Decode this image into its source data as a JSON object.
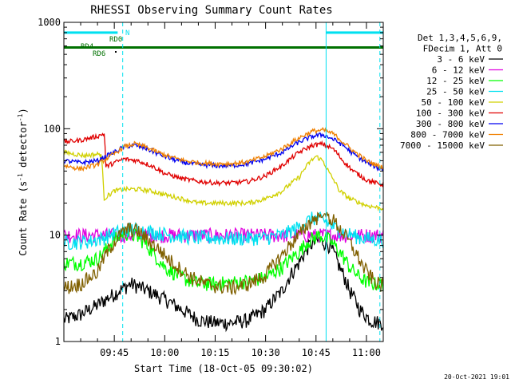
{
  "chart_data": {
    "type": "line",
    "title": "RHESSI Observing Summary Count Rates",
    "xlabel": "Start Time (18-Oct-05 09:30:02)",
    "ylabel": "Count Rate (s",
    "ylabel_sup1": "-1",
    "ylabel_mid": " detector",
    "ylabel_sup2": "-1",
    "ylabel_end": ")",
    "y_scale": "log",
    "ylim": [
      1,
      1000
    ],
    "xlim_minutes": [
      0,
      95
    ],
    "x_ticks": [
      {
        "t": 15,
        "label": "09:45"
      },
      {
        "t": 30,
        "label": "10:00"
      },
      {
        "t": 45,
        "label": "10:15"
      },
      {
        "t": 60,
        "label": "10:30"
      },
      {
        "t": 75,
        "label": "10:45"
      },
      {
        "t": 90,
        "label": "11:00"
      }
    ],
    "y_ticks": [
      {
        "v": 1,
        "label": "1"
      },
      {
        "v": 10,
        "label": "10"
      },
      {
        "v": 100,
        "label": "100"
      },
      {
        "v": 1000,
        "label": "1000"
      }
    ],
    "legend_header": [
      "Det 1,3,4,5,6,9,",
      "FDecim 1, Att 0"
    ],
    "legend_position": "top-right",
    "series": [
      {
        "name": "3 - 6 keV",
        "color": "#000000",
        "points": [
          [
            0,
            1.6
          ],
          [
            5,
            1.8
          ],
          [
            10,
            2.2
          ],
          [
            15,
            2.8
          ],
          [
            20,
            3.5
          ],
          [
            25,
            3.0
          ],
          [
            30,
            2.5
          ],
          [
            35,
            2.0
          ],
          [
            40,
            1.6
          ],
          [
            45,
            1.5
          ],
          [
            50,
            1.5
          ],
          [
            55,
            1.6
          ],
          [
            60,
            2.0
          ],
          [
            65,
            3.0
          ],
          [
            70,
            5.5
          ],
          [
            73,
            8.0
          ],
          [
            76,
            9.0
          ],
          [
            79,
            8.0
          ],
          [
            82,
            5.0
          ],
          [
            85,
            3.0
          ],
          [
            88,
            2.0
          ],
          [
            91,
            1.6
          ],
          [
            94,
            1.5
          ]
        ]
      },
      {
        "name": "6 - 12 keV",
        "color": "#e000e0",
        "points": [
          [
            0,
            10
          ],
          [
            10,
            10
          ],
          [
            20,
            10
          ],
          [
            30,
            10
          ],
          [
            40,
            10
          ],
          [
            50,
            10
          ],
          [
            60,
            10
          ],
          [
            70,
            10
          ],
          [
            80,
            10
          ],
          [
            90,
            10
          ],
          [
            94,
            10
          ]
        ]
      },
      {
        "name": "12 - 25 keV",
        "color": "#00ff00",
        "points": [
          [
            0,
            5.5
          ],
          [
            5,
            5.5
          ],
          [
            10,
            6.0
          ],
          [
            12,
            7.0
          ],
          [
            15,
            9.0
          ],
          [
            18,
            10.5
          ],
          [
            21,
            10.0
          ],
          [
            24,
            8.5
          ],
          [
            27,
            6.5
          ],
          [
            30,
            5.0
          ],
          [
            35,
            4.0
          ],
          [
            40,
            3.5
          ],
          [
            45,
            3.5
          ],
          [
            50,
            3.6
          ],
          [
            55,
            3.7
          ],
          [
            60,
            4.0
          ],
          [
            65,
            5.0
          ],
          [
            70,
            7.0
          ],
          [
            73,
            9.0
          ],
          [
            76,
            10.0
          ],
          [
            79,
            9.0
          ],
          [
            82,
            7.0
          ],
          [
            85,
            5.0
          ],
          [
            88,
            4.0
          ],
          [
            91,
            3.5
          ],
          [
            94,
            3.5
          ]
        ]
      },
      {
        "name": "25 - 50 keV",
        "color": "#00e0f0",
        "points": [
          [
            0,
            8.5
          ],
          [
            8,
            8.8
          ],
          [
            12,
            9.5
          ],
          [
            15,
            10.5
          ],
          [
            18,
            11.0
          ],
          [
            20,
            11.5
          ],
          [
            24,
            11.0
          ],
          [
            28,
            10.5
          ],
          [
            32,
            10.0
          ],
          [
            40,
            9.5
          ],
          [
            50,
            9.3
          ],
          [
            60,
            9.5
          ],
          [
            65,
            10.0
          ],
          [
            70,
            12.0
          ],
          [
            74,
            14.5
          ],
          [
            77,
            14.0
          ],
          [
            80,
            12.0
          ],
          [
            84,
            10.5
          ],
          [
            88,
            9.5
          ],
          [
            94,
            9.0
          ]
        ]
      },
      {
        "name": "50 - 100 keV",
        "color": "#d0d000",
        "points": [
          [
            0,
            60
          ],
          [
            6,
            56
          ],
          [
            11,
            58
          ],
          [
            12,
            22
          ],
          [
            15,
            26
          ],
          [
            18,
            27
          ],
          [
            22,
            27
          ],
          [
            26,
            26
          ],
          [
            30,
            24
          ],
          [
            35,
            22
          ],
          [
            40,
            20
          ],
          [
            45,
            20
          ],
          [
            50,
            20
          ],
          [
            55,
            20
          ],
          [
            60,
            22
          ],
          [
            65,
            26
          ],
          [
            70,
            35
          ],
          [
            73,
            48
          ],
          [
            75,
            55
          ],
          [
            77,
            50
          ],
          [
            79,
            38
          ],
          [
            82,
            26
          ],
          [
            85,
            22
          ],
          [
            90,
            19
          ],
          [
            94,
            18
          ]
        ]
      },
      {
        "name": "100 - 300 keV",
        "color": "#e00000",
        "points": [
          [
            0,
            75
          ],
          [
            5,
            78
          ],
          [
            10,
            85
          ],
          [
            12,
            90
          ],
          [
            12.5,
            44
          ],
          [
            15,
            48
          ],
          [
            18,
            52
          ],
          [
            22,
            50
          ],
          [
            26,
            45
          ],
          [
            30,
            38
          ],
          [
            35,
            34
          ],
          [
            40,
            32
          ],
          [
            45,
            31
          ],
          [
            50,
            31
          ],
          [
            55,
            32
          ],
          [
            60,
            36
          ],
          [
            65,
            45
          ],
          [
            70,
            60
          ],
          [
            74,
            70
          ],
          [
            77,
            72
          ],
          [
            80,
            65
          ],
          [
            83,
            50
          ],
          [
            86,
            40
          ],
          [
            90,
            33
          ],
          [
            94,
            30
          ]
        ]
      },
      {
        "name": "300 - 800 keV",
        "color": "#0000f0",
        "points": [
          [
            0,
            50
          ],
          [
            5,
            48
          ],
          [
            10,
            50
          ],
          [
            15,
            60
          ],
          [
            18,
            68
          ],
          [
            21,
            70
          ],
          [
            24,
            66
          ],
          [
            28,
            58
          ],
          [
            32,
            52
          ],
          [
            36,
            48
          ],
          [
            40,
            46
          ],
          [
            45,
            45
          ],
          [
            50,
            45
          ],
          [
            55,
            47
          ],
          [
            60,
            52
          ],
          [
            65,
            60
          ],
          [
            70,
            75
          ],
          [
            74,
            85
          ],
          [
            77,
            88
          ],
          [
            80,
            80
          ],
          [
            83,
            70
          ],
          [
            86,
            58
          ],
          [
            90,
            48
          ],
          [
            94,
            42
          ]
        ]
      },
      {
        "name": "800 - 7000 keV",
        "color": "#f08000",
        "points": [
          [
            0,
            45
          ],
          [
            5,
            42
          ],
          [
            10,
            46
          ],
          [
            15,
            58
          ],
          [
            18,
            68
          ],
          [
            21,
            72
          ],
          [
            24,
            68
          ],
          [
            28,
            60
          ],
          [
            32,
            54
          ],
          [
            36,
            50
          ],
          [
            40,
            48
          ],
          [
            45,
            47
          ],
          [
            50,
            47
          ],
          [
            55,
            49
          ],
          [
            60,
            55
          ],
          [
            65,
            65
          ],
          [
            70,
            82
          ],
          [
            74,
            95
          ],
          [
            77,
            97
          ],
          [
            80,
            90
          ],
          [
            83,
            75
          ],
          [
            86,
            62
          ],
          [
            90,
            50
          ],
          [
            94,
            44
          ]
        ]
      },
      {
        "name": "7000 - 15000 keV",
        "color": "#806000",
        "points": [
          [
            0,
            3.2
          ],
          [
            5,
            3.5
          ],
          [
            10,
            4.5
          ],
          [
            13,
            7.0
          ],
          [
            16,
            9.5
          ],
          [
            19,
            11.5
          ],
          [
            22,
            11.0
          ],
          [
            25,
            9.0
          ],
          [
            28,
            7.5
          ],
          [
            31,
            6.0
          ],
          [
            34,
            5.0
          ],
          [
            38,
            4.0
          ],
          [
            42,
            3.5
          ],
          [
            46,
            3.3
          ],
          [
            50,
            3.2
          ],
          [
            55,
            3.5
          ],
          [
            60,
            4.2
          ],
          [
            65,
            6.5
          ],
          [
            70,
            10.0
          ],
          [
            74,
            14.0
          ],
          [
            77,
            15.5
          ],
          [
            80,
            14.0
          ],
          [
            83,
            10.5
          ],
          [
            86,
            7.5
          ],
          [
            89,
            5.0
          ],
          [
            92,
            3.8
          ],
          [
            94,
            3.4
          ]
        ]
      }
    ],
    "state_labels": [
      {
        "label": "N",
        "color": "#00e0f0"
      },
      {
        "label": "RD0",
        "color": "#007000"
      },
      {
        "label": "RD4",
        "color": "#007000"
      },
      {
        "label": "RD6",
        "color": "#007000"
      }
    ],
    "state_bars": [
      {
        "color": "#00e0f0",
        "t_start": 0,
        "t_end": 16,
        "level": 800
      },
      {
        "color": "#00e0f0",
        "t_start": 78,
        "t_end": 95,
        "level": 800
      },
      {
        "color": "#007000",
        "t_start": 0,
        "t_end": 95,
        "level": 580
      }
    ],
    "vlines": [
      {
        "t": 17.5,
        "color": "#00e0f0",
        "style": "dashed"
      },
      {
        "t": 78,
        "color": "#00e0f0",
        "style": "solid"
      },
      {
        "t": 94,
        "color": "#00e0f0",
        "style": "dashed"
      }
    ],
    "timestamp": "20-Oct-2021 19:01"
  }
}
